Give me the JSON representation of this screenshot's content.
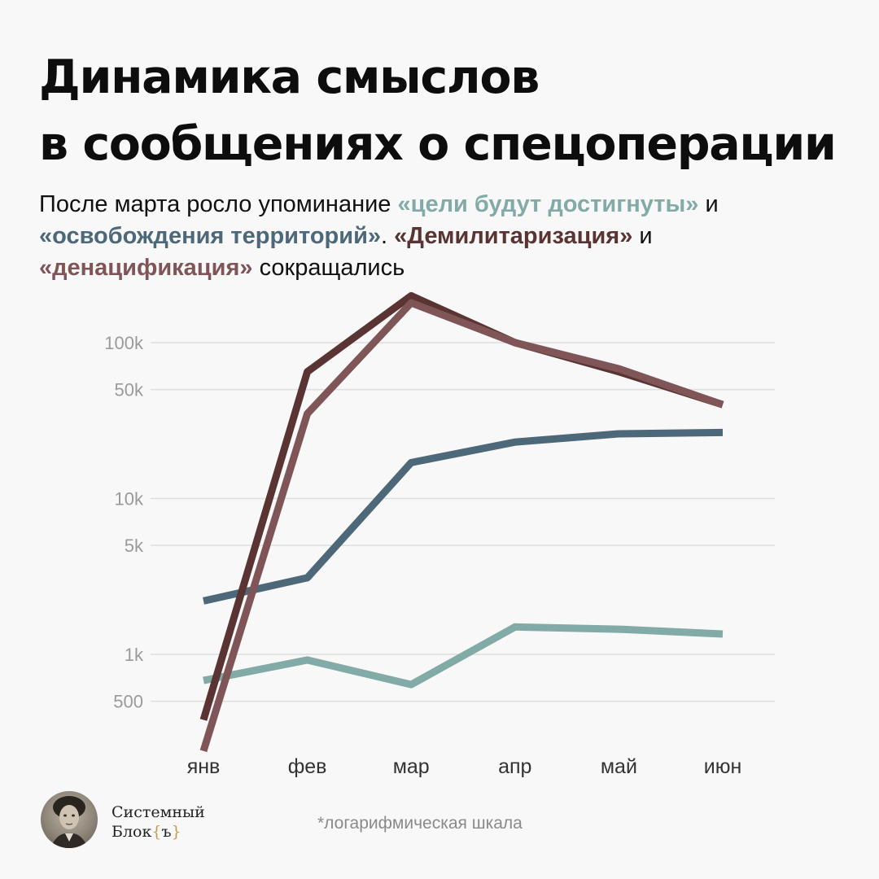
{
  "title": {
    "line1": "Динамика смыслов",
    "line2": "в сообщениях о спецоперации"
  },
  "subtitle": {
    "t1": "После марта росло упоминание ",
    "h1": "«цели будут достигнуты»",
    "t2": " и ",
    "h2": "«освобождения территорий»",
    "t3": ". ",
    "h3": "«Демилитаризация»",
    "t4": " и ",
    "h4": "«денацификация»",
    "t5": " сокращались"
  },
  "colors": {
    "goals": "#82aaa6",
    "liberation": "#4d6878",
    "demilitarization": "#5a3432",
    "denazification": "#7f5558",
    "grid": "#dedede"
  },
  "chart_data": {
    "type": "line",
    "y_scale": "log",
    "categories": [
      "янв",
      "фев",
      "мар",
      "апр",
      "май",
      "июн"
    ],
    "y_ticks": [
      {
        "value": 500,
        "label": "500"
      },
      {
        "value": 1000,
        "label": "1k"
      },
      {
        "value": 5000,
        "label": "5k"
      },
      {
        "value": 10000,
        "label": "10k"
      },
      {
        "value": 50000,
        "label": "50k"
      },
      {
        "value": 100000,
        "label": "100k"
      }
    ],
    "ylim": [
      200,
      200000
    ],
    "grid": true,
    "series": [
      {
        "key": "goals",
        "values": [
          680,
          920,
          640,
          1500,
          1450,
          1350
        ]
      },
      {
        "key": "liberation",
        "values": [
          2200,
          3100,
          17000,
          23000,
          26000,
          26500
        ]
      },
      {
        "key": "demilitarization",
        "values": [
          380,
          65000,
          200000,
          100000,
          65000,
          40000
        ]
      },
      {
        "key": "denazification",
        "values": [
          240,
          35000,
          180000,
          100000,
          68000,
          40000
        ]
      }
    ]
  },
  "brand": {
    "line1": "Системный",
    "line2_text": "Блок",
    "line2_brace_open": "{",
    "line2_mark": "ъ",
    "line2_brace_close": "}"
  },
  "note": "*логарифмическая шкала"
}
